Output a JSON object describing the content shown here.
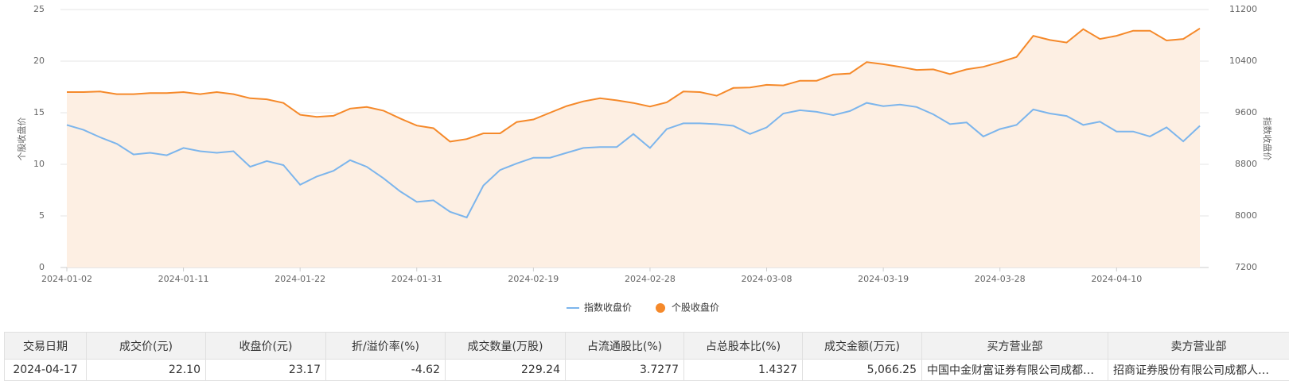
{
  "chart_data": {
    "type": "line",
    "y_label": "个股收盘价",
    "y2_label": "指数收盘价",
    "categories": [
      "2024-01-02",
      null,
      null,
      null,
      null,
      null,
      null,
      "2024-01-11",
      null,
      null,
      null,
      null,
      null,
      null,
      "2024-01-22",
      null,
      null,
      null,
      null,
      null,
      null,
      "2024-01-31",
      null,
      null,
      null,
      null,
      null,
      null,
      "2024-02-19",
      null,
      null,
      null,
      null,
      null,
      null,
      "2024-02-28",
      null,
      null,
      null,
      null,
      null,
      null,
      "2024-03-08",
      null,
      null,
      null,
      null,
      null,
      null,
      "2024-03-19",
      null,
      null,
      null,
      null,
      null,
      null,
      "2024-03-28",
      null,
      null,
      null,
      null,
      null,
      null,
      "2024-04-10",
      null,
      null,
      null,
      null,
      null
    ],
    "series": [
      {
        "name": "指数收盘价",
        "color": "#7cb5ec",
        "axis": "y2",
        "values": [
          9410,
          9334,
          9219,
          9118,
          8953,
          8978,
          8940,
          9054,
          9003,
          8978,
          9003,
          8762,
          8851,
          8788,
          8483,
          8610,
          8699,
          8864,
          8762,
          8584,
          8381,
          8216,
          8241,
          8064,
          7975,
          8470,
          8711,
          8813,
          8902,
          8902,
          8978,
          9054,
          9067,
          9067,
          9270,
          9054,
          9346,
          9435,
          9435,
          9423,
          9397,
          9270,
          9372,
          9588,
          9638,
          9613,
          9562,
          9626,
          9753,
          9702,
          9727,
          9689,
          9575,
          9423,
          9448,
          9232,
          9346,
          9410,
          9651,
          9588,
          9550,
          9410,
          9461,
          9308,
          9308,
          9232,
          9372,
          9156,
          9397
        ]
      },
      {
        "name": "个股收盘价",
        "color": "#f5892a",
        "fill": "#fdefe3",
        "values": [
          17.0,
          17.0,
          17.05,
          16.8,
          16.8,
          16.9,
          16.9,
          17.0,
          16.8,
          17.0,
          16.8,
          16.4,
          16.3,
          15.95,
          14.8,
          14.6,
          14.7,
          15.4,
          15.55,
          15.2,
          14.45,
          13.75,
          13.5,
          12.2,
          12.45,
          13.0,
          13.0,
          14.1,
          14.35,
          15.0,
          15.65,
          16.1,
          16.4,
          16.2,
          15.95,
          15.6,
          16.0,
          17.05,
          17.0,
          16.65,
          17.4,
          17.45,
          17.7,
          17.65,
          18.1,
          18.1,
          18.7,
          18.8,
          19.9,
          19.7,
          19.45,
          19.15,
          19.2,
          18.75,
          19.2,
          19.45,
          19.9,
          20.4,
          22.45,
          22.05,
          21.8,
          23.1,
          22.15,
          22.45,
          22.95,
          22.95,
          22.0,
          22.15,
          23.17
        ]
      }
    ],
    "ylim": [
      0,
      25
    ],
    "yticks": [
      0,
      5,
      10,
      15,
      20,
      25
    ],
    "y2lim": [
      7200,
      11200
    ],
    "y2ticks": [
      7200,
      8000,
      8800,
      9600,
      10400,
      11200
    ],
    "grid": true,
    "legend": "bottom"
  },
  "table": {
    "columns": [
      "交易日期",
      "成交价(元)",
      "收盘价(元)",
      "折/溢价率(%)",
      "成交数量(万股)",
      "占流通股比(%)",
      "占总股本比(%)",
      "成交金额(万元)",
      "买方营业部",
      "卖方营业部"
    ],
    "rows": [
      [
        "2024-04-17",
        "22.10",
        "23.17",
        "-4.62",
        "229.24",
        "3.7277",
        "1.4327",
        "5,066.25",
        "中国中金财富证券有限公司成都…",
        "招商证券股份有限公司成都人…"
      ]
    ]
  }
}
